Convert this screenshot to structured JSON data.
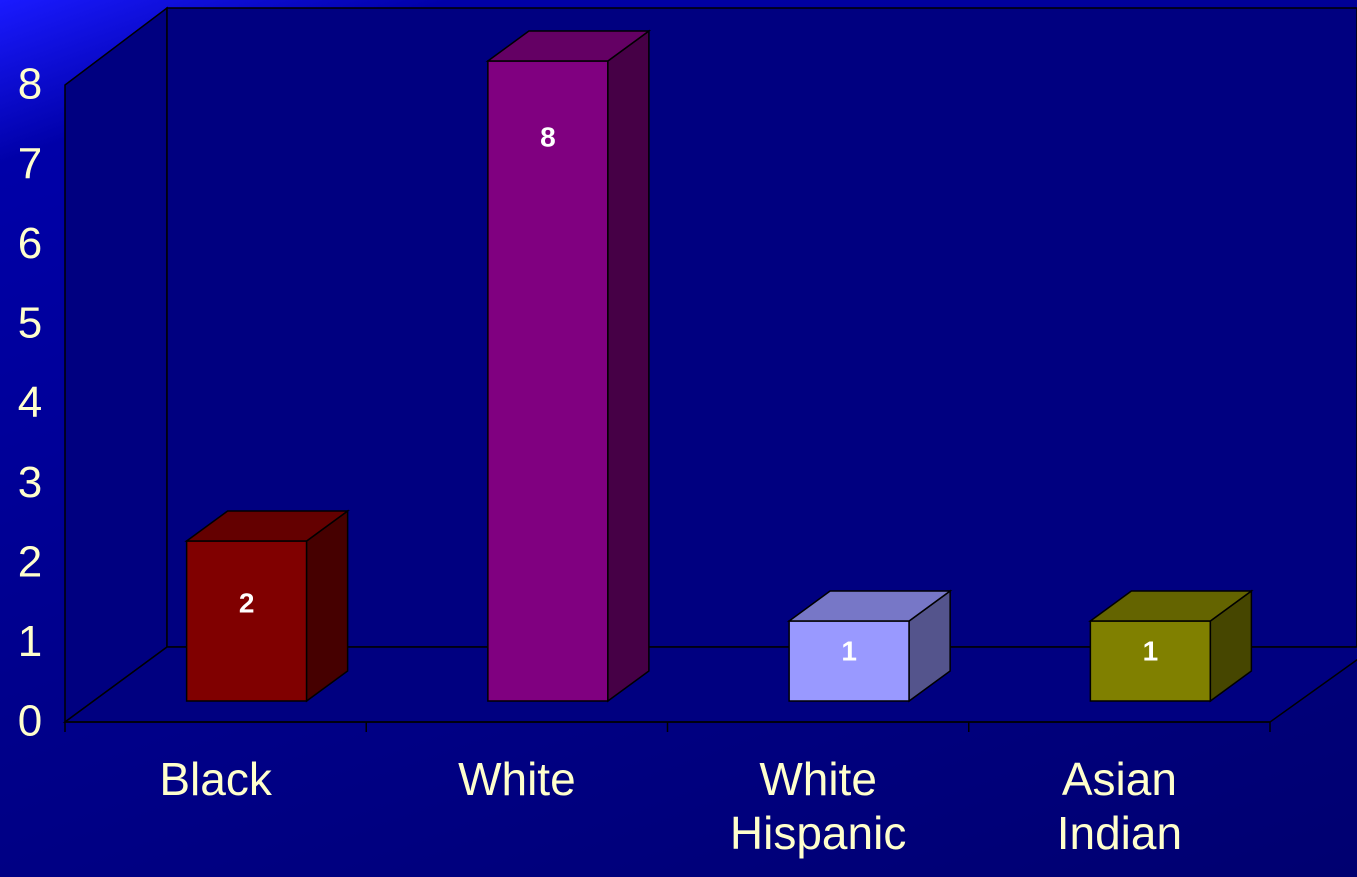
{
  "chart_data": {
    "type": "bar3d",
    "categories": [
      "Black",
      "White",
      "White Hispanic",
      "Asian Indian"
    ],
    "values": [
      2,
      8,
      1,
      1
    ],
    "colors": [
      "#800000",
      "#800080",
      "#9999ff",
      "#808000"
    ],
    "ylim": [
      0,
      8
    ],
    "yticks": [
      0,
      1,
      2,
      3,
      4,
      5,
      6,
      7,
      8
    ]
  }
}
